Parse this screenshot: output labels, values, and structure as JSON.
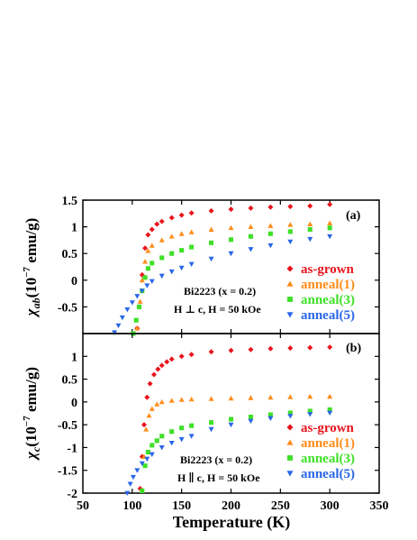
{
  "figure": {
    "xlabel": "Temperature (K)",
    "x_ticks": [
      "50",
      "100",
      "150",
      "200",
      "250",
      "300",
      "350"
    ]
  },
  "chart_data": [
    {
      "type": "scatter",
      "panel_label": "(a)",
      "ylabel_main": "χ",
      "ylabel_sub": "ab",
      "ylabel_unit": "(10",
      "ylabel_exp": "−7",
      "ylabel_tail": " emu/g)",
      "annotation_line1": "Bi2223 (x = 0.2)",
      "annotation_line2": "H ⊥ c, H = 50 kOe",
      "xlim": [
        50,
        350
      ],
      "ylim": [
        -1.0,
        1.5
      ],
      "y_ticks": [
        "1.5",
        "1",
        "0.5",
        "0",
        "-0.5"
      ],
      "legend_position": "lower-right",
      "series": [
        {
          "name": "as-grown",
          "color": "#e8141c",
          "marker": "diamond",
          "x": [
            105,
            107,
            110,
            113,
            116,
            120,
            125,
            130,
            140,
            150,
            160,
            180,
            200,
            220,
            240,
            260,
            280,
            300
          ],
          "y": [
            -0.9,
            -0.5,
            0.1,
            0.6,
            0.85,
            0.95,
            1.05,
            1.1,
            1.17,
            1.22,
            1.26,
            1.3,
            1.33,
            1.35,
            1.37,
            1.38,
            1.39,
            1.42
          ]
        },
        {
          "name": "anneal(1)",
          "color": "#ff8c1a",
          "marker": "triangle-up",
          "x": [
            105,
            108,
            110,
            113,
            116,
            120,
            130,
            140,
            150,
            160,
            180,
            200,
            220,
            240,
            260,
            280,
            300
          ],
          "y": [
            -0.9,
            -0.4,
            0.0,
            0.35,
            0.55,
            0.65,
            0.75,
            0.82,
            0.87,
            0.9,
            0.95,
            0.98,
            1.0,
            1.02,
            1.04,
            1.05,
            1.07
          ]
        },
        {
          "name": "anneal(3)",
          "color": "#3fe028",
          "marker": "square",
          "x": [
            101,
            104,
            107,
            110,
            113,
            116,
            120,
            130,
            140,
            150,
            160,
            180,
            200,
            220,
            240,
            260,
            280,
            300
          ],
          "y": [
            -1.0,
            -0.75,
            -0.5,
            -0.2,
            0.05,
            0.22,
            0.32,
            0.42,
            0.5,
            0.56,
            0.62,
            0.7,
            0.76,
            0.82,
            0.87,
            0.91,
            0.95,
            0.98
          ]
        },
        {
          "name": "anneal(5)",
          "color": "#2a66e8",
          "marker": "triangle-down",
          "x": [
            82,
            86,
            90,
            95,
            100,
            105,
            110,
            115,
            120,
            130,
            140,
            150,
            160,
            180,
            200,
            220,
            240,
            260,
            280,
            300
          ],
          "y": [
            -0.98,
            -0.85,
            -0.7,
            -0.55,
            -0.42,
            -0.3,
            -0.2,
            -0.1,
            -0.02,
            0.08,
            0.16,
            0.23,
            0.3,
            0.4,
            0.5,
            0.58,
            0.65,
            0.72,
            0.77,
            0.82
          ]
        }
      ]
    },
    {
      "type": "scatter",
      "panel_label": "(b)",
      "ylabel_main": "χ",
      "ylabel_sub": "c",
      "ylabel_unit": "(10",
      "ylabel_exp": "−7",
      "ylabel_tail": " emu/g)",
      "annotation_line1": "Bi2223 (x = 0.2)",
      "annotation_line2": "H ∥ c, H = 50 kOe",
      "xlim": [
        50,
        350
      ],
      "ylim": [
        -2.0,
        1.5
      ],
      "y_ticks": [
        "1",
        "0.5",
        "0",
        "-0.5",
        "-1",
        "-1.5",
        "-2"
      ],
      "legend_position": "lower-right",
      "series": [
        {
          "name": "as-grown",
          "color": "#e8141c",
          "marker": "diamond",
          "x": [
            108,
            110,
            112,
            115,
            118,
            122,
            126,
            130,
            135,
            140,
            150,
            160,
            180,
            200,
            220,
            240,
            260,
            280,
            300
          ],
          "y": [
            -1.9,
            -1.2,
            -0.5,
            0.1,
            0.4,
            0.6,
            0.72,
            0.8,
            0.88,
            0.94,
            1.0,
            1.04,
            1.1,
            1.13,
            1.15,
            1.17,
            1.18,
            1.19,
            1.2
          ]
        },
        {
          "name": "anneal(1)",
          "color": "#ff8c1a",
          "marker": "triangle-up",
          "x": [
            110,
            112,
            114,
            117,
            120,
            125,
            130,
            140,
            150,
            160,
            180,
            200,
            220,
            240,
            260,
            280,
            300
          ],
          "y": [
            -1.95,
            -1.2,
            -0.6,
            -0.3,
            -0.15,
            -0.05,
            0.0,
            0.03,
            0.05,
            0.06,
            0.07,
            0.08,
            0.09,
            0.1,
            0.11,
            0.12,
            0.12
          ]
        },
        {
          "name": "anneal(3)",
          "color": "#3fe028",
          "marker": "square",
          "x": [
            110,
            113,
            116,
            120,
            125,
            130,
            140,
            150,
            160,
            180,
            200,
            220,
            240,
            260,
            280,
            300
          ],
          "y": [
            -1.95,
            -1.4,
            -1.1,
            -0.95,
            -0.85,
            -0.75,
            -0.65,
            -0.57,
            -0.52,
            -0.45,
            -0.38,
            -0.33,
            -0.28,
            -0.24,
            -0.2,
            -0.17
          ]
        },
        {
          "name": "anneal(5)",
          "color": "#2a66e8",
          "marker": "triangle-down",
          "x": [
            95,
            98,
            101,
            105,
            110,
            115,
            120,
            130,
            140,
            150,
            160,
            180,
            200,
            220,
            240,
            260,
            280,
            300
          ],
          "y": [
            -2.0,
            -1.8,
            -1.65,
            -1.5,
            -1.35,
            -1.25,
            -1.15,
            -1.0,
            -0.9,
            -0.82,
            -0.75,
            -0.6,
            -0.5,
            -0.42,
            -0.36,
            -0.31,
            -0.27,
            -0.24
          ]
        }
      ]
    }
  ]
}
